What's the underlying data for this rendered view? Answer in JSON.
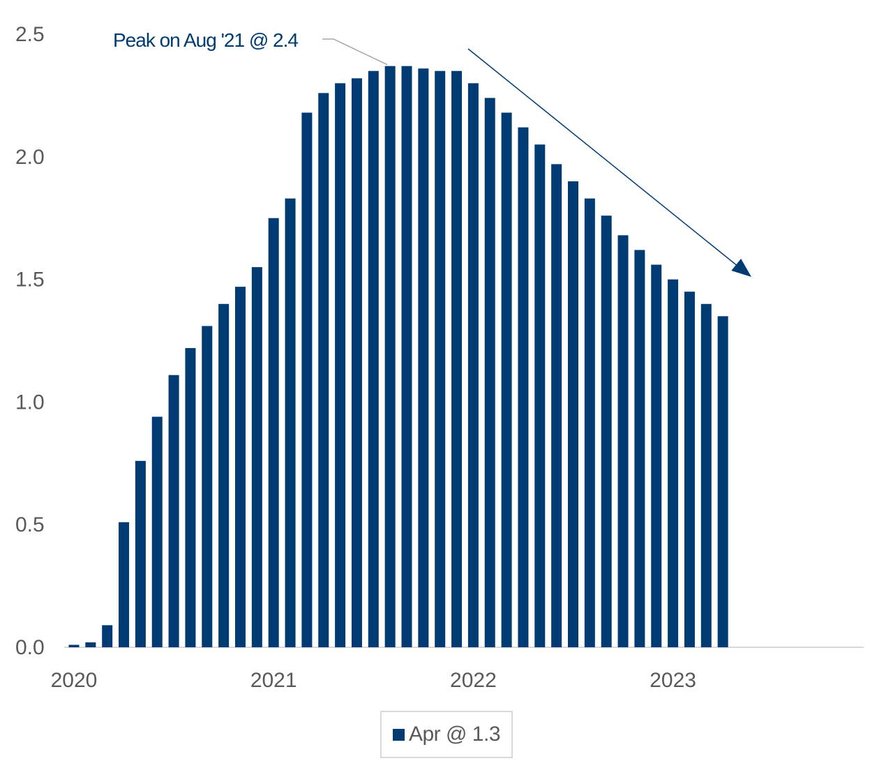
{
  "chart_data": {
    "type": "bar",
    "ylim": [
      0,
      2.5
    ],
    "y_ticks": [
      "0.0",
      "0.5",
      "1.0",
      "1.5",
      "2.0",
      "2.5"
    ],
    "x_ticks": [
      "2020",
      "2021",
      "2022",
      "2023"
    ],
    "categories": [
      "2020-01",
      "2020-02",
      "2020-03",
      "2020-04",
      "2020-05",
      "2020-06",
      "2020-07",
      "2020-08",
      "2020-09",
      "2020-10",
      "2020-11",
      "2020-12",
      "2021-01",
      "2021-02",
      "2021-03",
      "2021-04",
      "2021-05",
      "2021-06",
      "2021-07",
      "2021-08",
      "2021-09",
      "2021-10",
      "2021-11",
      "2021-12",
      "2022-01",
      "2022-02",
      "2022-03",
      "2022-04",
      "2022-05",
      "2022-06",
      "2022-07",
      "2022-08",
      "2022-09",
      "2022-10",
      "2022-11",
      "2022-12",
      "2023-01",
      "2023-02",
      "2023-03",
      "2023-04"
    ],
    "series": [
      {
        "name": "Apr @ 1.3",
        "color": "#003b73",
        "values": [
          0.01,
          0.02,
          0.09,
          0.51,
          0.76,
          0.94,
          1.11,
          1.22,
          1.31,
          1.4,
          1.47,
          1.55,
          1.75,
          1.83,
          2.18,
          2.26,
          2.3,
          2.32,
          2.35,
          2.37,
          2.37,
          2.36,
          2.35,
          2.35,
          2.3,
          2.24,
          2.18,
          2.12,
          2.05,
          1.97,
          1.9,
          1.83,
          1.76,
          1.68,
          1.62,
          1.56,
          1.5,
          1.45,
          1.4,
          1.35
        ]
      }
    ],
    "annotation": {
      "text": "Peak on Aug '21 @ 2.4",
      "target_category": "2021-08"
    },
    "legend": {
      "label": "Apr @ 1.3",
      "placement": "bottom"
    },
    "grid": false,
    "trend_arrow": true
  }
}
